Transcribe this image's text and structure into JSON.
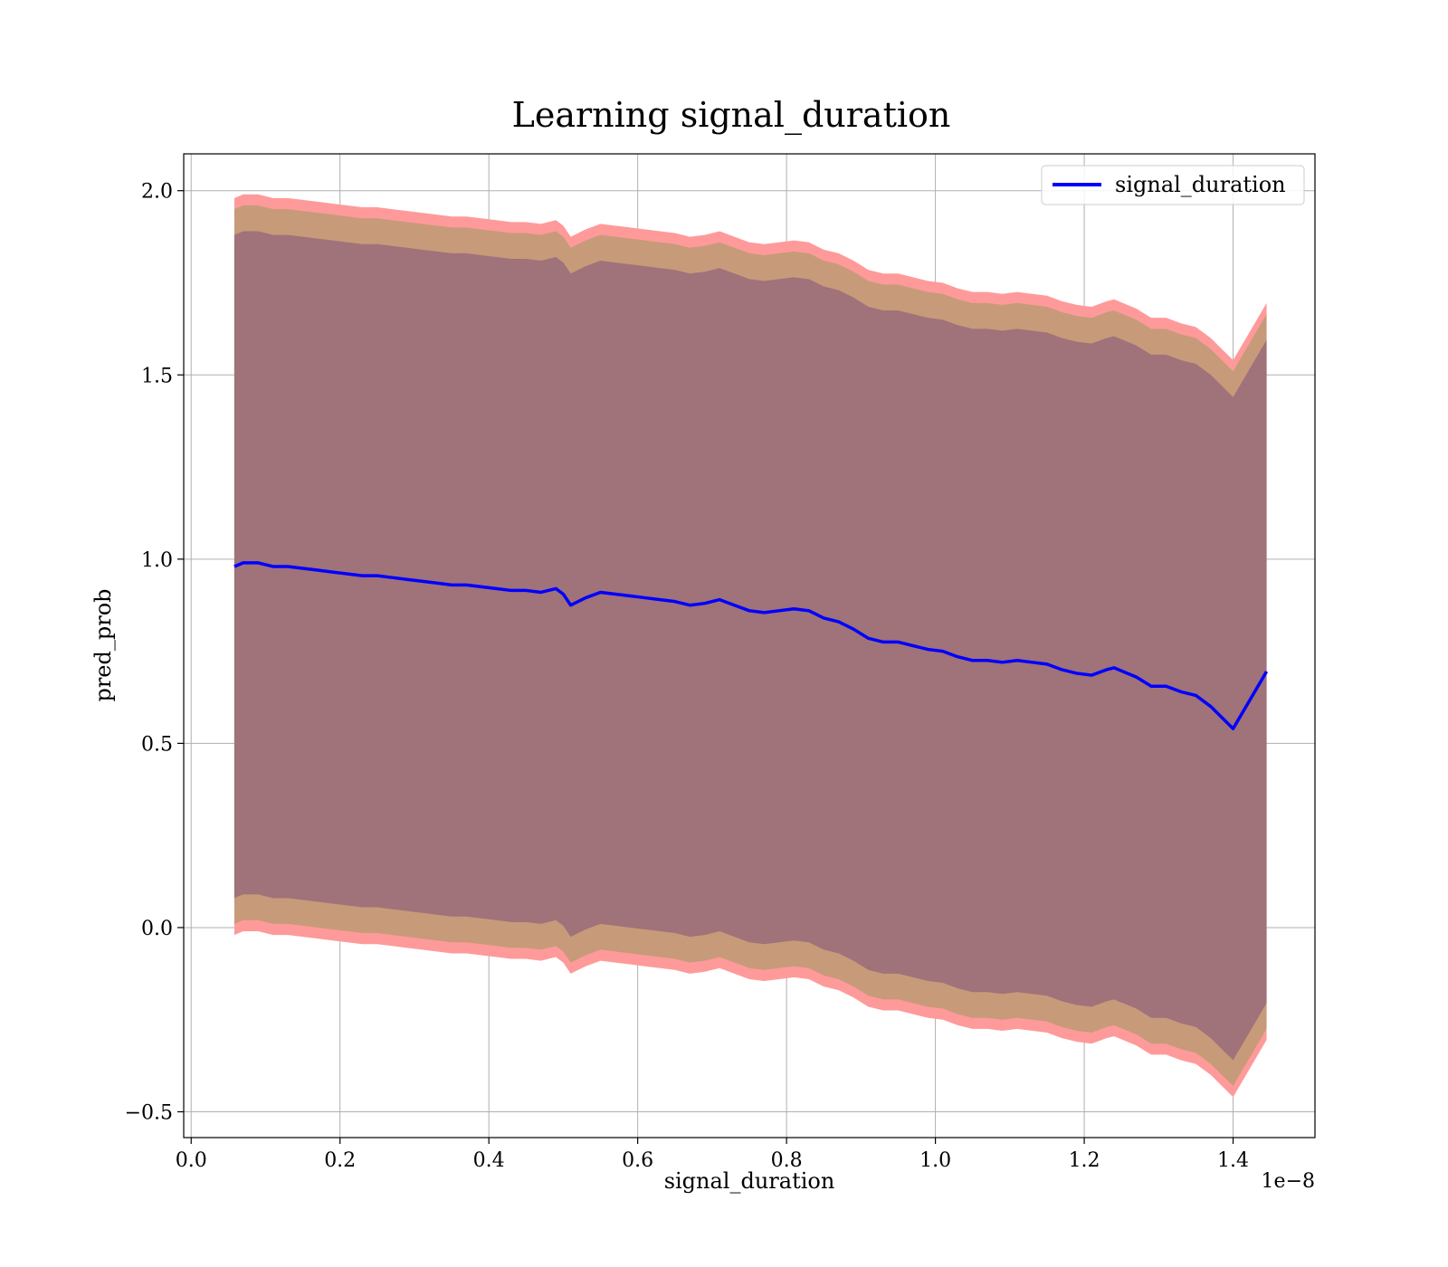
{
  "chart_data": {
    "type": "line",
    "title": "Learning signal_duration",
    "xlabel": "signal_duration",
    "ylabel": "pred_prob",
    "x_offset_text": "1e−8",
    "xlim": [
      -0.01,
      1.51
    ],
    "ylim": [
      -0.57,
      2.1
    ],
    "grid": true,
    "legend": {
      "position": "top-right",
      "entries": [
        "signal_duration"
      ]
    },
    "xticks": [
      0.0,
      0.2,
      0.4,
      0.6,
      0.8,
      1.0,
      1.2,
      1.4
    ],
    "xtick_labels": [
      "0.0",
      "0.2",
      "0.4",
      "0.6",
      "0.8",
      "1.0",
      "1.2",
      "1.4"
    ],
    "yticks": [
      -0.5,
      0.0,
      0.5,
      1.0,
      1.5,
      2.0
    ],
    "ytick_labels": [
      "−0.5",
      "0.0",
      "0.5",
      "1.0",
      "1.5",
      "2.0"
    ],
    "colors": {
      "line": "#0000ff",
      "band_outer": "#ff9a9a",
      "band_middle": "#c79a7a",
      "band_inner": "#a0727a",
      "grid": "#b0b0b0"
    },
    "series": [
      {
        "name": "signal_duration",
        "x": [
          0.058,
          0.07,
          0.09,
          0.11,
          0.13,
          0.15,
          0.17,
          0.19,
          0.21,
          0.23,
          0.25,
          0.27,
          0.29,
          0.31,
          0.33,
          0.35,
          0.37,
          0.39,
          0.41,
          0.43,
          0.45,
          0.47,
          0.49,
          0.5,
          0.51,
          0.53,
          0.55,
          0.57,
          0.59,
          0.61,
          0.63,
          0.65,
          0.67,
          0.69,
          0.71,
          0.73,
          0.75,
          0.77,
          0.79,
          0.81,
          0.83,
          0.85,
          0.87,
          0.89,
          0.91,
          0.93,
          0.95,
          0.97,
          0.99,
          1.01,
          1.03,
          1.05,
          1.07,
          1.09,
          1.11,
          1.13,
          1.15,
          1.17,
          1.19,
          1.21,
          1.23,
          1.24,
          1.27,
          1.29,
          1.31,
          1.33,
          1.35,
          1.37,
          1.4,
          1.445
        ],
        "y": [
          0.98,
          0.99,
          0.99,
          0.98,
          0.98,
          0.975,
          0.97,
          0.965,
          0.96,
          0.955,
          0.955,
          0.95,
          0.945,
          0.94,
          0.935,
          0.93,
          0.93,
          0.925,
          0.92,
          0.915,
          0.915,
          0.91,
          0.92,
          0.905,
          0.875,
          0.895,
          0.91,
          0.905,
          0.9,
          0.895,
          0.89,
          0.885,
          0.875,
          0.88,
          0.89,
          0.875,
          0.86,
          0.855,
          0.86,
          0.865,
          0.86,
          0.84,
          0.83,
          0.81,
          0.785,
          0.775,
          0.775,
          0.765,
          0.755,
          0.75,
          0.735,
          0.725,
          0.725,
          0.72,
          0.725,
          0.72,
          0.715,
          0.7,
          0.69,
          0.685,
          0.7,
          0.705,
          0.68,
          0.655,
          0.655,
          0.64,
          0.63,
          0.6,
          0.54,
          0.695
        ]
      }
    ],
    "bands": [
      {
        "name": "outer",
        "offset": 1.0
      },
      {
        "name": "middle",
        "offset": 0.97
      },
      {
        "name": "inner",
        "offset": 0.9
      }
    ]
  }
}
